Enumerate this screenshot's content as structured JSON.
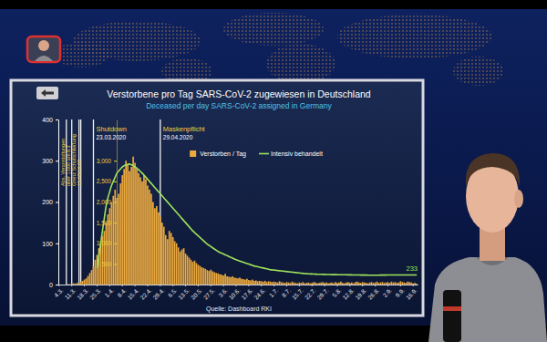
{
  "chart_data": {
    "type": "bar",
    "title": "Verstorbene pro Tag SARS-CoV-2 zugewiesen in Deutschland",
    "subtitle": "Deceased per day SARS-CoV-2 assigned in Germany",
    "source": "Quelle: Dashboard RKI",
    "categories": [
      "4.3.",
      null,
      null,
      null,
      null,
      null,
      null,
      "11.3.",
      null,
      null,
      null,
      null,
      null,
      null,
      "18.3.",
      null,
      null,
      null,
      null,
      null,
      null,
      "25.3.",
      null,
      null,
      null,
      null,
      null,
      null,
      "1.4.",
      null,
      null,
      null,
      null,
      null,
      null,
      "8.4.",
      null,
      null,
      null,
      null,
      null,
      null,
      "15.4.",
      null,
      null,
      null,
      null,
      null,
      null,
      "22.4.",
      null,
      null,
      null,
      null,
      null,
      null,
      "29.4.",
      null,
      null,
      null,
      null,
      null,
      null,
      "6.5.",
      null,
      null,
      null,
      null,
      null,
      null,
      "13.5.",
      null,
      null,
      null,
      null,
      null,
      null,
      "20.5.",
      null,
      null,
      null,
      null,
      null,
      null,
      "27.5.",
      null,
      null,
      null,
      null,
      null,
      null,
      "3.6.",
      null,
      null,
      null,
      null,
      null,
      null,
      "10.6.",
      null,
      null,
      null,
      null,
      null,
      null,
      "17.6.",
      null,
      null,
      null,
      null,
      null,
      null,
      "24.6.",
      null,
      null,
      null,
      null,
      null,
      null,
      "1.7.",
      null,
      null,
      null,
      null,
      null,
      null,
      "8.7.",
      null,
      null,
      null,
      null,
      null,
      null,
      "15.7.",
      null,
      null,
      null,
      null,
      null,
      null,
      "22.7.",
      null,
      null,
      null,
      null,
      null,
      null,
      "29.7.",
      null,
      null,
      null,
      null,
      null,
      null,
      "5.8.",
      null,
      null,
      null,
      null,
      null,
      null,
      "12.8.",
      null,
      null,
      null,
      null,
      null,
      null,
      "19.8.",
      null,
      null,
      null,
      null,
      null,
      null,
      "26.8.",
      null,
      null,
      null,
      null,
      null,
      null,
      "2.9.",
      null,
      null,
      null,
      null,
      null,
      null,
      "9.9.",
      null,
      null,
      null,
      null,
      null,
      null,
      "16.9.",
      null,
      null
    ],
    "series": [
      {
        "name": "Verstorben / Tag",
        "type": "bar",
        "color": "#eba93e",
        "values": [
          0,
          0,
          0,
          0,
          0,
          1,
          1,
          2,
          3,
          2,
          4,
          3,
          6,
          9,
          12,
          15,
          21,
          28,
          35,
          45,
          60,
          72,
          88,
          105,
          118,
          130,
          150,
          170,
          185,
          200,
          215,
          230,
          210,
          220,
          245,
          265,
          280,
          300,
          290,
          275,
          285,
          310,
          295,
          280,
          270,
          260,
          250,
          265,
          255,
          240,
          230,
          220,
          200,
          185,
          190,
          175,
          165,
          150,
          140,
          120,
          110,
          130,
          125,
          115,
          105,
          100,
          90,
          80,
          85,
          88,
          75,
          70,
          65,
          60,
          55,
          58,
          52,
          48,
          45,
          42,
          40,
          38,
          35,
          33,
          36,
          32,
          30,
          28,
          27,
          25,
          24,
          22,
          26,
          20,
          19,
          18,
          20,
          17,
          16,
          15,
          17,
          14,
          13,
          12,
          14,
          11,
          10,
          12,
          9,
          10,
          8,
          9,
          8,
          7,
          9,
          6,
          8,
          7,
          6,
          7,
          6,
          5,
          8,
          6,
          5,
          4,
          6,
          5,
          4,
          7,
          5,
          4,
          3,
          5,
          4,
          6,
          3,
          4,
          5,
          3,
          4,
          6,
          5,
          3,
          4,
          5,
          6,
          4,
          5,
          3,
          4,
          5,
          3,
          6,
          4,
          5,
          7,
          4,
          3,
          5,
          6,
          4,
          5,
          3,
          6,
          7,
          5,
          4,
          6,
          5,
          4,
          3,
          5,
          6,
          4,
          5,
          7,
          4,
          5,
          6,
          4,
          5,
          6,
          4,
          7,
          5,
          6,
          4,
          5,
          8,
          6,
          5,
          4,
          7,
          6,
          5,
          3,
          4,
          2
        ]
      },
      {
        "name": "Intensiv behandelt",
        "type": "line",
        "axis": "y2",
        "color": "#9ee35a",
        "values": [
          null,
          null,
          null,
          null,
          null,
          null,
          null,
          null,
          null,
          null,
          null,
          null,
          null,
          null,
          null,
          null,
          null,
          null,
          null,
          null,
          null,
          400,
          700,
          1000,
          1300,
          1600,
          1900,
          2100,
          2250,
          2400,
          2500,
          2600,
          2700,
          2750,
          2800,
          2850,
          2880,
          2900,
          2910,
          2920,
          2900,
          2880,
          2850,
          2820,
          2780,
          2740,
          2700,
          2650,
          2600,
          2550,
          2500,
          2450,
          2400,
          2350,
          2300,
          2250,
          2200,
          2150,
          2100,
          2050,
          2000,
          1950,
          1900,
          1850,
          1800,
          1750,
          1700,
          1650,
          1600,
          1550,
          1500,
          1450,
          1400,
          1350,
          1300,
          1260,
          1220,
          1180,
          1140,
          1100,
          1060,
          1020,
          980,
          950,
          920,
          890,
          860,
          830,
          800,
          780,
          760,
          740,
          720,
          700,
          680,
          660,
          640,
          620,
          600,
          585,
          570,
          555,
          540,
          525,
          510,
          495,
          480,
          465,
          450,
          440,
          430,
          420,
          410,
          400,
          390,
          380,
          370,
          360,
          355,
          350,
          345,
          340,
          335,
          330,
          325,
          320,
          315,
          310,
          305,
          300,
          295,
          290,
          285,
          280,
          275,
          270,
          265,
          262,
          260,
          258,
          256,
          254,
          252,
          250,
          250,
          248,
          246,
          245,
          244,
          243,
          242,
          241,
          240,
          240,
          239,
          238,
          238,
          237,
          236,
          236,
          235,
          234,
          234,
          233,
          232,
          232,
          231,
          230,
          230,
          229,
          229,
          228,
          228,
          228,
          227,
          227,
          228,
          228,
          229,
          229,
          230,
          230,
          231,
          231,
          232,
          232,
          233,
          233,
          233,
          233,
          233,
          233,
          233,
          233,
          233,
          233,
          233,
          233,
          233
        ]
      }
    ],
    "ylim": [
      0,
      400
    ],
    "yticks": [
      0,
      100,
      200,
      300,
      400
    ],
    "y2lim": [
      0,
      4000
    ],
    "y2ticks": [
      500,
      {
        "value": 1000,
        "label": "1,000"
      },
      {
        "value": 1500,
        "label": "1,500"
      },
      {
        "value": 2000,
        "label": "2,000"
      },
      {
        "value": 2500,
        "label": "2,500"
      },
      {
        "value": 3000,
        "label": "3,000"
      }
    ],
    "grid": false,
    "legend": "top",
    "events": [
      {
        "x": 4
      },
      {
        "x": 7
      },
      {
        "x": 11
      },
      {
        "x": 12
      },
      {
        "x": 19,
        "label": "Shutdown",
        "date": "23.03.2020"
      },
      {
        "x": 56,
        "label": "Maskenpflicht",
        "date": "29.04.2020"
      }
    ],
    "annotations": [
      {
        "lines": [
          "Abs. Veranstaltungen",
          "über 1.000 am 8.3",
          "Grenz Schulschließung",
          "15.03/16.03"
        ]
      },
      {
        "text": "233",
        "x": 198,
        "y": 233,
        "axis": "y2"
      }
    ]
  }
}
